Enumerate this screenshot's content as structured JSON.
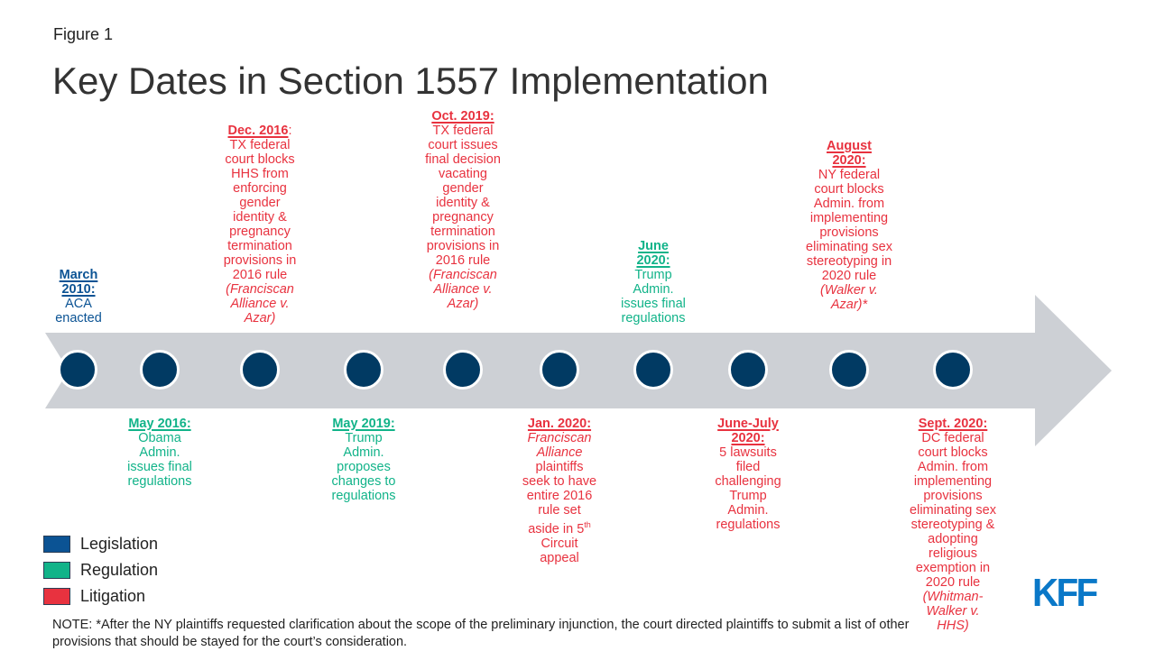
{
  "header": {
    "figure_label": "Figure 1",
    "title": "Key Dates in Section 1557 Implementation"
  },
  "colors": {
    "legislation": "#0b5394",
    "regulation": "#11b389",
    "litigation": "#e8323f",
    "arrow": "#cdd0d5",
    "dot": "#013a63",
    "logo": "#0a78c8"
  },
  "timeline": {
    "events": [
      {
        "position": "above",
        "category": "legislation",
        "date": "March 2010:",
        "text": "ACA enacted"
      },
      {
        "position": "below",
        "category": "regulation",
        "date": "May 2016:",
        "text": "Obama Admin. issues final regulations"
      },
      {
        "position": "above",
        "category": "litigation",
        "date": "Dec. 2016",
        "date_suffix": ":",
        "text": "TX federal court blocks HHS from enforcing gender identity & pregnancy termination provisions in 2016 rule",
        "case": "(Franciscan Alliance v. Azar)"
      },
      {
        "position": "below",
        "category": "regulation",
        "date": "May 2019:",
        "text": "Trump Admin. proposes changes to regulations"
      },
      {
        "position": "above",
        "category": "litigation",
        "date": "Oct. 2019:",
        "text": "TX federal court issues final decision vacating gender identity & pregnancy termination provisions in 2016 rule",
        "case": "(Franciscan Alliance v. Azar)"
      },
      {
        "position": "below",
        "category": "litigation",
        "date": "Jan. 2020:",
        "case_prefix": "Franciscan Alliance",
        "text": "plaintiffs seek to have entire 2016 rule set aside in 5th Circuit appeal"
      },
      {
        "position": "above",
        "category": "regulation",
        "date": "June 2020:",
        "text": "Trump Admin. issues final regulations"
      },
      {
        "position": "below",
        "category": "litigation",
        "date": "June-July 2020:",
        "text": "5 lawsuits filed challenging Trump Admin. regulations"
      },
      {
        "position": "above",
        "category": "litigation",
        "date": "August 2020:",
        "text": "NY federal court blocks Admin. from implementing provisions eliminating sex stereotyping in 2020 rule",
        "case": "(Walker v. Azar)*"
      },
      {
        "position": "below",
        "category": "litigation",
        "date": "Sept. 2020:",
        "text": "DC federal court blocks Admin. from implementing provisions eliminating sex stereotyping & adopting religious exemption in 2020 rule",
        "case": "(Whitman-Walker v. HHS)"
      }
    ]
  },
  "legend": {
    "items": [
      {
        "label": "Legislation",
        "color": "#0b5394"
      },
      {
        "label": "Regulation",
        "color": "#11b389"
      },
      {
        "label": "Litigation",
        "color": "#e8323f"
      }
    ]
  },
  "footer": {
    "note": "NOTE: *After the NY plaintiffs requested clarification about the scope of the preliminary injunction, the court directed plaintiffs to submit a list of other provisions that should be stayed for the court’s consideration.",
    "logo": "KFF"
  }
}
